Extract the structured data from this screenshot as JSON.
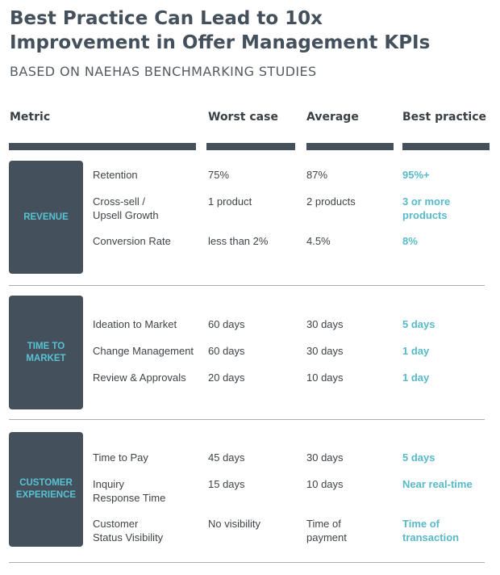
{
  "title": "Best Practice Can Lead to 10x\nImprovement in Offer Management KPIs",
  "subtitle": "BASED ON NAEHAS BENCHMARKING STUDIES",
  "colors": {
    "dark_box": "#44515d",
    "accent": "#58c2d2",
    "text": "#3f4448"
  },
  "columns": {
    "metric": "Metric",
    "worst": "Worst case",
    "average": "Average",
    "best": "Best practice"
  },
  "sections": [
    {
      "label": "REVENUE",
      "rows": [
        {
          "metric": "Retention",
          "worst": "75%",
          "average": "87%",
          "best": "95%+"
        },
        {
          "metric": "Cross-sell /\nUpsell Growth",
          "worst": "1 product",
          "average": "2 products",
          "best": "3 or more\nproducts"
        },
        {
          "metric": "Conversion Rate",
          "worst": "less than 2%",
          "average": "4.5%",
          "best": "8%"
        }
      ]
    },
    {
      "label": "TIME TO\nMARKET",
      "rows": [
        {
          "metric": "Ideation to Market",
          "worst": "60 days",
          "average": "30 days",
          "best": "5 days"
        },
        {
          "metric": "Change Management",
          "worst": "60 days",
          "average": "30 days",
          "best": "1 day"
        },
        {
          "metric": "Review & Approvals",
          "worst": "20 days",
          "average": "10 days",
          "best": "1 day"
        }
      ]
    },
    {
      "label": "CUSTOMER\nEXPERIENCE",
      "rows": [
        {
          "metric": "Time to Pay",
          "worst": "45 days",
          "average": "30 days",
          "best": "5 days"
        },
        {
          "metric": "Inquiry\nResponse Time",
          "worst": "15 days",
          "average": "10 days",
          "best": "Near real-time"
        },
        {
          "metric": "Customer\nStatus Visibility",
          "worst": "No visibility",
          "average": "Time of\npayment",
          "best": "Time of\ntransaction"
        }
      ]
    }
  ]
}
